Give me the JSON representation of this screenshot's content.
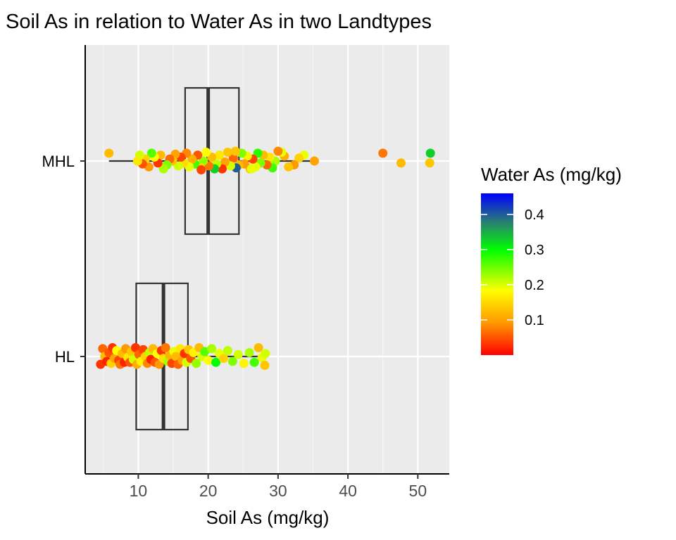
{
  "chart_data": {
    "type": "boxplot-jitter",
    "title": "Soil As in relation to Water As in two Landtypes",
    "xlabel": "Soil As (mg/kg)",
    "ylabel": "",
    "xlim": [
      2.5,
      54.5
    ],
    "x_ticks": [
      10,
      20,
      30,
      40,
      50
    ],
    "categories": [
      "MHL",
      "HL"
    ],
    "grid": true,
    "boxes": [
      {
        "category": "MHL",
        "whisker_low": 5.8,
        "q1": 16.7,
        "median": 20.0,
        "q3": 24.4,
        "whisker_high": 35.2
      },
      {
        "category": "HL",
        "whisker_low": 4.6,
        "q1": 9.7,
        "median": 13.6,
        "q3": 17.1,
        "whisker_high": 28.0
      }
    ],
    "points": [
      {
        "category": "MHL",
        "x": 5.8,
        "y_off": -0.04,
        "c": 0.12
      },
      {
        "category": "MHL",
        "x": 45.0,
        "y_off": -0.04,
        "c": 0.07
      },
      {
        "category": "MHL",
        "x": 47.6,
        "y_off": 0.01,
        "c": 0.12
      },
      {
        "category": "MHL",
        "x": 51.8,
        "y_off": -0.04,
        "c": 0.33
      },
      {
        "category": "MHL",
        "x": 51.7,
        "y_off": 0.01,
        "c": 0.13
      },
      {
        "category": "MHL",
        "x": 35.2,
        "y_off": 0.0,
        "c": 0.1
      },
      {
        "category": "MHL",
        "x": 33.7,
        "y_off": -0.03,
        "c": 0.19
      },
      {
        "category": "MHL",
        "x": 33.0,
        "y_off": -0.015,
        "c": 0.14
      },
      {
        "category": "MHL",
        "x": 32.3,
        "y_off": 0.02,
        "c": 0.09
      },
      {
        "category": "MHL",
        "x": 31.5,
        "y_off": 0.03,
        "c": 0.13
      },
      {
        "category": "MHL",
        "x": 30.9,
        "y_off": -0.025,
        "c": 0.11
      },
      {
        "category": "MHL",
        "x": 30.5,
        "y_off": -0.045,
        "c": 0.19
      },
      {
        "category": "MHL",
        "x": 30.0,
        "y_off": -0.05,
        "c": 0.08
      },
      {
        "category": "MHL",
        "x": 29.6,
        "y_off": 0.0,
        "c": 0.22
      },
      {
        "category": "MHL",
        "x": 29.2,
        "y_off": 0.035,
        "c": 0.27
      },
      {
        "category": "MHL",
        "x": 28.8,
        "y_off": -0.02,
        "c": 0.16
      },
      {
        "category": "MHL",
        "x": 28.4,
        "y_off": 0.02,
        "c": 0.06
      },
      {
        "category": "MHL",
        "x": 27.9,
        "y_off": -0.03,
        "c": 0.12
      },
      {
        "category": "MHL",
        "x": 27.5,
        "y_off": 0.01,
        "c": 0.24
      },
      {
        "category": "MHL",
        "x": 27.1,
        "y_off": -0.04,
        "c": 0.28
      },
      {
        "category": "MHL",
        "x": 26.8,
        "y_off": 0.03,
        "c": 0.19
      },
      {
        "category": "MHL",
        "x": 26.4,
        "y_off": -0.01,
        "c": 0.04
      },
      {
        "category": "MHL",
        "x": 26.0,
        "y_off": 0.04,
        "c": 0.12
      },
      {
        "category": "MHL",
        "x": 25.6,
        "y_off": -0.025,
        "c": 0.17
      },
      {
        "category": "MHL",
        "x": 25.2,
        "y_off": 0.015,
        "c": 0.09
      },
      {
        "category": "MHL",
        "x": 24.8,
        "y_off": -0.04,
        "c": 0.24
      },
      {
        "category": "MHL",
        "x": 24.4,
        "y_off": 0.02,
        "c": 0.12
      },
      {
        "category": "MHL",
        "x": 24.0,
        "y_off": 0.035,
        "c": 0.4
      },
      {
        "category": "MHL",
        "x": 23.6,
        "y_off": -0.015,
        "c": 0.06
      },
      {
        "category": "MHL",
        "x": 23.2,
        "y_off": 0.025,
        "c": 0.2
      },
      {
        "category": "MHL",
        "x": 22.8,
        "y_off": -0.045,
        "c": 0.13
      },
      {
        "category": "MHL",
        "x": 22.4,
        "y_off": 0.005,
        "c": 0.1
      },
      {
        "category": "MHL",
        "x": 22.0,
        "y_off": 0.04,
        "c": 0.03
      },
      {
        "category": "MHL",
        "x": 21.6,
        "y_off": -0.03,
        "c": 0.16
      },
      {
        "category": "MHL",
        "x": 21.2,
        "y_off": 0.015,
        "c": 0.21
      },
      {
        "category": "MHL",
        "x": 20.9,
        "y_off": 0.04,
        "c": 0.33
      },
      {
        "category": "MHL",
        "x": 20.5,
        "y_off": -0.02,
        "c": 0.12
      },
      {
        "category": "MHL",
        "x": 20.1,
        "y_off": 0.025,
        "c": 0.07
      },
      {
        "category": "MHL",
        "x": 19.7,
        "y_off": -0.045,
        "c": 0.18
      },
      {
        "category": "MHL",
        "x": 19.3,
        "y_off": 0.0,
        "c": 0.23
      },
      {
        "category": "MHL",
        "x": 18.9,
        "y_off": 0.035,
        "c": 0.14
      },
      {
        "category": "MHL",
        "x": 18.5,
        "y_off": -0.03,
        "c": 0.05
      },
      {
        "category": "MHL",
        "x": 18.1,
        "y_off": 0.015,
        "c": 0.27
      },
      {
        "category": "MHL",
        "x": 17.7,
        "y_off": -0.01,
        "c": 0.11
      },
      {
        "category": "MHL",
        "x": 17.3,
        "y_off": 0.03,
        "c": 0.19
      },
      {
        "category": "MHL",
        "x": 16.9,
        "y_off": -0.04,
        "c": 0.08
      },
      {
        "category": "MHL",
        "x": 16.5,
        "y_off": 0.01,
        "c": 0.15
      },
      {
        "category": "MHL",
        "x": 16.1,
        "y_off": -0.02,
        "c": 0.04
      },
      {
        "category": "MHL",
        "x": 15.7,
        "y_off": 0.025,
        "c": 0.2
      },
      {
        "category": "MHL",
        "x": 15.3,
        "y_off": -0.035,
        "c": 0.1
      },
      {
        "category": "MHL",
        "x": 14.9,
        "y_off": 0.0,
        "c": 0.13
      },
      {
        "category": "MHL",
        "x": 14.5,
        "y_off": -0.01,
        "c": 0.06
      },
      {
        "category": "MHL",
        "x": 14.1,
        "y_off": 0.02,
        "c": 0.24
      },
      {
        "category": "MHL",
        "x": 13.6,
        "y_off": 0.04,
        "c": 0.22
      },
      {
        "category": "MHL",
        "x": 13.2,
        "y_off": -0.03,
        "c": 0.12
      },
      {
        "category": "MHL",
        "x": 12.8,
        "y_off": 0.01,
        "c": 0.03
      },
      {
        "category": "MHL",
        "x": 12.3,
        "y_off": -0.02,
        "c": 0.18
      },
      {
        "category": "MHL",
        "x": 11.9,
        "y_off": -0.04,
        "c": 0.26
      },
      {
        "category": "MHL",
        "x": 11.5,
        "y_off": 0.03,
        "c": 0.09
      },
      {
        "category": "MHL",
        "x": 11.0,
        "y_off": -0.01,
        "c": 0.14
      },
      {
        "category": "MHL",
        "x": 10.6,
        "y_off": 0.015,
        "c": 0.05
      },
      {
        "category": "MHL",
        "x": 10.2,
        "y_off": -0.03,
        "c": 0.2
      },
      {
        "category": "MHL",
        "x": 9.9,
        "y_off": 0.0,
        "c": 0.16
      },
      {
        "category": "MHL",
        "x": 26.2,
        "y_off": 0.04,
        "c": 0.19
      },
      {
        "category": "MHL",
        "x": 23.9,
        "y_off": -0.05,
        "c": 0.13
      },
      {
        "category": "MHL",
        "x": 19.0,
        "y_off": 0.045,
        "c": 0.04
      },
      {
        "category": "HL",
        "x": 4.6,
        "y_off": 0.04,
        "c": 0.03
      },
      {
        "category": "HL",
        "x": 4.9,
        "y_off": -0.04,
        "c": 0.06
      },
      {
        "category": "HL",
        "x": 5.2,
        "y_off": 0.0,
        "c": 0.12
      },
      {
        "category": "HL",
        "x": 5.5,
        "y_off": 0.025,
        "c": 0.02
      },
      {
        "category": "HL",
        "x": 5.8,
        "y_off": -0.02,
        "c": 0.05
      },
      {
        "category": "HL",
        "x": 6.1,
        "y_off": 0.035,
        "c": 0.14
      },
      {
        "category": "HL",
        "x": 6.3,
        "y_off": -0.045,
        "c": 0.03
      },
      {
        "category": "HL",
        "x": 6.6,
        "y_off": 0.01,
        "c": 0.1
      },
      {
        "category": "HL",
        "x": 6.9,
        "y_off": -0.03,
        "c": 0.18
      },
      {
        "category": "HL",
        "x": 7.2,
        "y_off": 0.02,
        "c": 0.04
      },
      {
        "category": "HL",
        "x": 7.4,
        "y_off": 0.04,
        "c": 0.07
      },
      {
        "category": "HL",
        "x": 7.7,
        "y_off": -0.015,
        "c": 0.12
      },
      {
        "category": "HL",
        "x": 8.0,
        "y_off": 0.03,
        "c": 0.02
      },
      {
        "category": "HL",
        "x": 8.2,
        "y_off": -0.04,
        "c": 0.09
      },
      {
        "category": "HL",
        "x": 8.5,
        "y_off": 0.005,
        "c": 0.16
      },
      {
        "category": "HL",
        "x": 8.8,
        "y_off": 0.03,
        "c": 0.05
      },
      {
        "category": "HL",
        "x": 9.0,
        "y_off": -0.025,
        "c": 0.13
      },
      {
        "category": "HL",
        "x": 9.3,
        "y_off": 0.015,
        "c": 0.2
      },
      {
        "category": "HL",
        "x": 9.6,
        "y_off": -0.045,
        "c": 0.03
      },
      {
        "category": "HL",
        "x": 9.8,
        "y_off": 0.04,
        "c": 0.11
      },
      {
        "category": "HL",
        "x": 10.1,
        "y_off": -0.01,
        "c": 0.06
      },
      {
        "category": "HL",
        "x": 10.4,
        "y_off": 0.025,
        "c": 0.17
      },
      {
        "category": "HL",
        "x": 10.7,
        "y_off": -0.035,
        "c": 0.04
      },
      {
        "category": "HL",
        "x": 11.0,
        "y_off": 0.0,
        "c": 0.14
      },
      {
        "category": "HL",
        "x": 11.3,
        "y_off": 0.035,
        "c": 0.08
      },
      {
        "category": "HL",
        "x": 11.6,
        "y_off": -0.02,
        "c": 0.21
      },
      {
        "category": "HL",
        "x": 11.8,
        "y_off": 0.015,
        "c": 0.02
      },
      {
        "category": "HL",
        "x": 12.1,
        "y_off": -0.04,
        "c": 0.12
      },
      {
        "category": "HL",
        "x": 12.4,
        "y_off": 0.03,
        "c": 0.05
      },
      {
        "category": "HL",
        "x": 12.7,
        "y_off": -0.015,
        "c": 0.18
      },
      {
        "category": "HL",
        "x": 13.0,
        "y_off": 0.04,
        "c": 0.09
      },
      {
        "category": "HL",
        "x": 13.3,
        "y_off": -0.03,
        "c": 0.03
      },
      {
        "category": "HL",
        "x": 13.6,
        "y_off": 0.01,
        "c": 0.15
      },
      {
        "category": "HL",
        "x": 13.9,
        "y_off": -0.045,
        "c": 0.07
      },
      {
        "category": "HL",
        "x": 14.2,
        "y_off": 0.025,
        "c": 0.22
      },
      {
        "category": "HL",
        "x": 14.5,
        "y_off": -0.005,
        "c": 0.11
      },
      {
        "category": "HL",
        "x": 14.8,
        "y_off": 0.035,
        "c": 0.04
      },
      {
        "category": "HL",
        "x": 15.1,
        "y_off": -0.025,
        "c": 0.19
      },
      {
        "category": "HL",
        "x": 15.4,
        "y_off": 0.0,
        "c": 0.12
      },
      {
        "category": "HL",
        "x": 15.7,
        "y_off": 0.04,
        "c": 0.06
      },
      {
        "category": "HL",
        "x": 16.0,
        "y_off": -0.04,
        "c": 0.16
      },
      {
        "category": "HL",
        "x": 16.3,
        "y_off": 0.02,
        "c": 0.1
      },
      {
        "category": "HL",
        "x": 16.6,
        "y_off": -0.015,
        "c": 0.03
      },
      {
        "category": "HL",
        "x": 16.9,
        "y_off": 0.03,
        "c": 0.2
      },
      {
        "category": "HL",
        "x": 17.2,
        "y_off": -0.035,
        "c": 0.13
      },
      {
        "category": "HL",
        "x": 17.5,
        "y_off": 0.01,
        "c": 0.05
      },
      {
        "category": "HL",
        "x": 17.9,
        "y_off": -0.02,
        "c": 0.17
      },
      {
        "category": "HL",
        "x": 18.3,
        "y_off": 0.035,
        "c": 0.23
      },
      {
        "category": "HL",
        "x": 18.7,
        "y_off": -0.045,
        "c": 0.12
      },
      {
        "category": "HL",
        "x": 19.1,
        "y_off": 0.0,
        "c": 0.2
      },
      {
        "category": "HL",
        "x": 19.5,
        "y_off": -0.025,
        "c": 0.26
      },
      {
        "category": "HL",
        "x": 20.0,
        "y_off": 0.02,
        "c": 0.18
      },
      {
        "category": "HL",
        "x": 20.5,
        "y_off": -0.04,
        "c": 0.22
      },
      {
        "category": "HL",
        "x": 21.1,
        "y_off": 0.03,
        "c": 0.3
      },
      {
        "category": "HL",
        "x": 21.6,
        "y_off": -0.015,
        "c": 0.19
      },
      {
        "category": "HL",
        "x": 22.2,
        "y_off": 0.01,
        "c": 0.14
      },
      {
        "category": "HL",
        "x": 22.8,
        "y_off": -0.03,
        "c": 0.21
      },
      {
        "category": "HL",
        "x": 23.5,
        "y_off": 0.025,
        "c": 0.24
      },
      {
        "category": "HL",
        "x": 24.3,
        "y_off": -0.01,
        "c": 0.2
      },
      {
        "category": "HL",
        "x": 25.1,
        "y_off": 0.035,
        "c": 0.17
      },
      {
        "category": "HL",
        "x": 25.9,
        "y_off": -0.02,
        "c": 0.22
      },
      {
        "category": "HL",
        "x": 26.6,
        "y_off": 0.03,
        "c": 0.27
      },
      {
        "category": "HL",
        "x": 27.2,
        "y_off": -0.045,
        "c": 0.12
      },
      {
        "category": "HL",
        "x": 27.7,
        "y_off": 0.005,
        "c": 0.19
      },
      {
        "category": "HL",
        "x": 28.1,
        "y_off": 0.045,
        "c": 0.13
      },
      {
        "category": "HL",
        "x": 28.2,
        "y_off": -0.015,
        "c": 0.2
      }
    ],
    "legend": {
      "title": "Water As (mg/kg)",
      "position": "right",
      "ticks": [
        0.1,
        0.2,
        0.3,
        0.4
      ],
      "range": [
        0.0,
        0.46
      ],
      "colors": [
        "#ff0000",
        "#ffff00",
        "#00ff00",
        "#0000ff"
      ]
    }
  }
}
